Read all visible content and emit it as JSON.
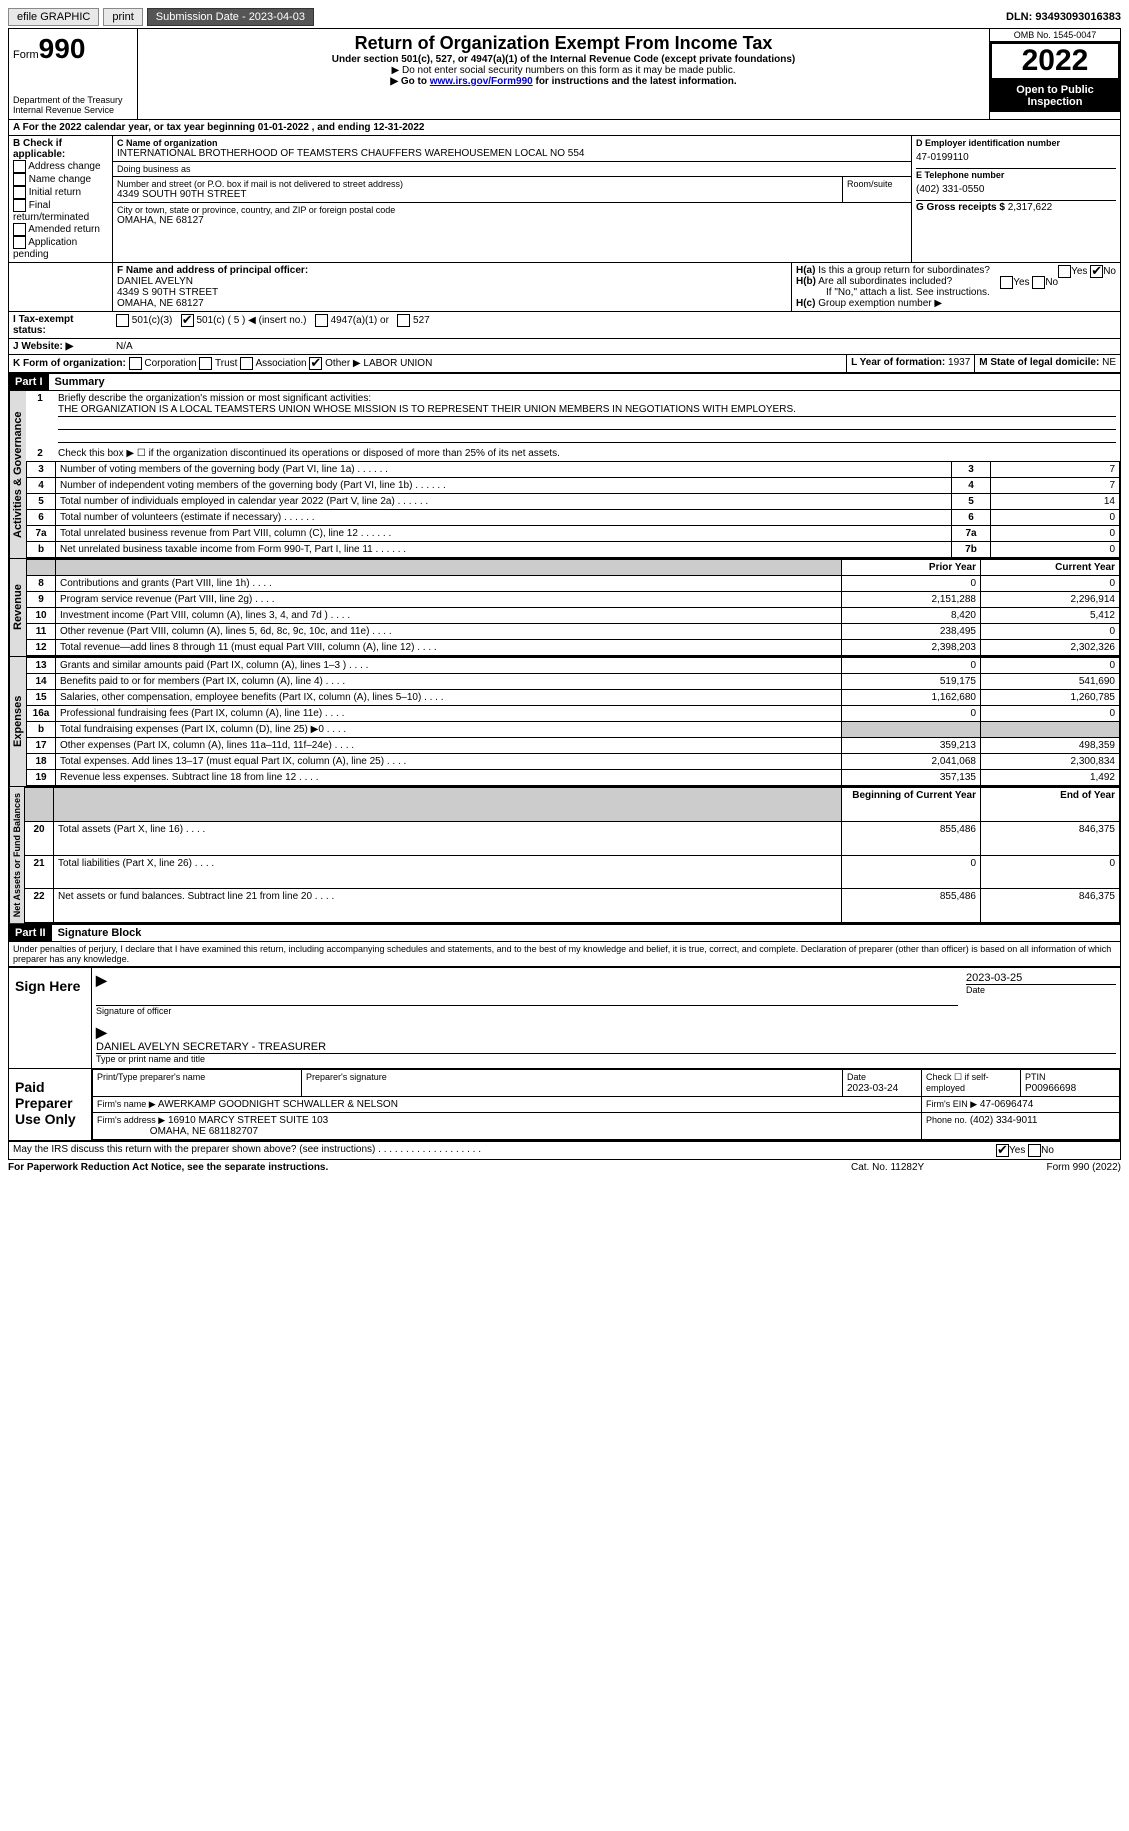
{
  "topbar": {
    "efile": "efile GRAPHIC",
    "print": "print",
    "sub_label": "Submission Date - 2023-04-03",
    "dln": "DLN: 93493093016383"
  },
  "header": {
    "form": "Form",
    "num": "990",
    "dept": "Department of the Treasury",
    "irs": "Internal Revenue Service",
    "title": "Return of Organization Exempt From Income Tax",
    "sub1": "Under section 501(c), 527, or 4947(a)(1) of the Internal Revenue Code (except private foundations)",
    "sub2": "▶ Do not enter social security numbers on this form as it may be made public.",
    "sub3_pre": "▶ Go to ",
    "sub3_link": "www.irs.gov/Form990",
    "sub3_post": " for instructions and the latest information.",
    "omb": "OMB No. 1545-0047",
    "year": "2022",
    "inspect": "Open to Public Inspection"
  },
  "a_line": "A For the 2022 calendar year, or tax year beginning 01-01-2022    , and ending 12-31-2022",
  "b": {
    "label": "B Check if applicable:",
    "opts": [
      "Address change",
      "Name change",
      "Initial return",
      "Final return/terminated",
      "Amended return",
      "Application pending"
    ]
  },
  "c": {
    "label": "C Name of organization",
    "name": "INTERNATIONAL BROTHERHOOD OF TEAMSTERS CHAUFFERS WAREHOUSEMEN LOCAL NO 554",
    "dba": "Doing business as",
    "addr_label": "Number and street (or P.O. box if mail is not delivered to street address)",
    "room": "Room/suite",
    "addr": "4349 SOUTH 90TH STREET",
    "city_label": "City or town, state or province, country, and ZIP or foreign postal code",
    "city": "OMAHA, NE  68127"
  },
  "d": {
    "label": "D Employer identification number",
    "val": "47-0199110"
  },
  "e": {
    "label": "E Telephone number",
    "val": "(402) 331-0550"
  },
  "g": {
    "label": "G Gross receipts $",
    "val": "2,317,622"
  },
  "f": {
    "label": "F Name and address of principal officer:",
    "name": "DANIEL AVELYN",
    "addr": "4349 S 90TH STREET",
    "city": "OMAHA, NE  68127"
  },
  "h": {
    "a": "Is this a group return for subordinates?",
    "b": "Are all subordinates included?",
    "note": "If \"No,\" attach a list. See instructions.",
    "c": "Group exemption number ▶"
  },
  "i": {
    "label": "Tax-exempt status:",
    "opts": [
      "501(c)(3)",
      "501(c) ( 5 ) ◀ (insert no.)",
      "4947(a)(1) or",
      "527"
    ]
  },
  "j": {
    "label": "Website: ▶",
    "val": "N/A"
  },
  "k": {
    "label": "K Form of organization:",
    "opts": [
      "Corporation",
      "Trust",
      "Association",
      "Other ▶"
    ],
    "other": "LABOR UNION"
  },
  "l": {
    "label": "L Year of formation:",
    "val": "1937"
  },
  "m": {
    "label": "M State of legal domicile:",
    "val": "NE"
  },
  "part1": {
    "hdr": "Part I",
    "title": "Summary",
    "q1": "Briefly describe the organization's mission or most significant activities:",
    "mission": "THE ORGANIZATION IS A LOCAL TEAMSTERS UNION WHOSE MISSION IS TO REPRESENT THEIR UNION MEMBERS IN NEGOTIATIONS WITH EMPLOYERS.",
    "q2": "Check this box ▶ ☐ if the organization discontinued its operations or disposed of more than 25% of its net assets.",
    "lines": [
      {
        "n": "3",
        "t": "Number of voting members of the governing body (Part VI, line 1a)",
        "box": "3",
        "v": "7"
      },
      {
        "n": "4",
        "t": "Number of independent voting members of the governing body (Part VI, line 1b)",
        "box": "4",
        "v": "7"
      },
      {
        "n": "5",
        "t": "Total number of individuals employed in calendar year 2022 (Part V, line 2a)",
        "box": "5",
        "v": "14"
      },
      {
        "n": "6",
        "t": "Total number of volunteers (estimate if necessary)",
        "box": "6",
        "v": "0"
      },
      {
        "n": "7a",
        "t": "Total unrelated business revenue from Part VIII, column (C), line 12",
        "box": "7a",
        "v": "0"
      },
      {
        "n": "b",
        "t": "Net unrelated business taxable income from Form 990-T, Part I, line 11",
        "box": "7b",
        "v": "0"
      }
    ],
    "col_prior": "Prior Year",
    "col_curr": "Current Year",
    "rev": [
      {
        "n": "8",
        "t": "Contributions and grants (Part VIII, line 1h)",
        "p": "0",
        "c": "0"
      },
      {
        "n": "9",
        "t": "Program service revenue (Part VIII, line 2g)",
        "p": "2,151,288",
        "c": "2,296,914"
      },
      {
        "n": "10",
        "t": "Investment income (Part VIII, column (A), lines 3, 4, and 7d )",
        "p": "8,420",
        "c": "5,412"
      },
      {
        "n": "11",
        "t": "Other revenue (Part VIII, column (A), lines 5, 6d, 8c, 9c, 10c, and 11e)",
        "p": "238,495",
        "c": "0"
      },
      {
        "n": "12",
        "t": "Total revenue—add lines 8 through 11 (must equal Part VIII, column (A), line 12)",
        "p": "2,398,203",
        "c": "2,302,326"
      }
    ],
    "exp": [
      {
        "n": "13",
        "t": "Grants and similar amounts paid (Part IX, column (A), lines 1–3 )",
        "p": "0",
        "c": "0"
      },
      {
        "n": "14",
        "t": "Benefits paid to or for members (Part IX, column (A), line 4)",
        "p": "519,175",
        "c": "541,690"
      },
      {
        "n": "15",
        "t": "Salaries, other compensation, employee benefits (Part IX, column (A), lines 5–10)",
        "p": "1,162,680",
        "c": "1,260,785"
      },
      {
        "n": "16a",
        "t": "Professional fundraising fees (Part IX, column (A), line 11e)",
        "p": "0",
        "c": "0"
      },
      {
        "n": "b",
        "t": "Total fundraising expenses (Part IX, column (D), line 25) ▶0",
        "p": "",
        "c": "",
        "grey": true
      },
      {
        "n": "17",
        "t": "Other expenses (Part IX, column (A), lines 11a–11d, 11f–24e)",
        "p": "359,213",
        "c": "498,359"
      },
      {
        "n": "18",
        "t": "Total expenses. Add lines 13–17 (must equal Part IX, column (A), line 25)",
        "p": "2,041,068",
        "c": "2,300,834"
      },
      {
        "n": "19",
        "t": "Revenue less expenses. Subtract line 18 from line 12",
        "p": "357,135",
        "c": "1,492"
      }
    ],
    "col_beg": "Beginning of Current Year",
    "col_end": "End of Year",
    "net": [
      {
        "n": "20",
        "t": "Total assets (Part X, line 16)",
        "p": "855,486",
        "c": "846,375"
      },
      {
        "n": "21",
        "t": "Total liabilities (Part X, line 26)",
        "p": "0",
        "c": "0"
      },
      {
        "n": "22",
        "t": "Net assets or fund balances. Subtract line 21 from line 20",
        "p": "855,486",
        "c": "846,375"
      }
    ],
    "tabs": {
      "gov": "Activities & Governance",
      "rev": "Revenue",
      "exp": "Expenses",
      "net": "Net Assets or Fund Balances"
    }
  },
  "part2": {
    "hdr": "Part II",
    "title": "Signature Block",
    "decl": "Under penalties of perjury, I declare that I have examined this return, including accompanying schedules and statements, and to the best of my knowledge and belief, it is true, correct, and complete. Declaration of preparer (other than officer) is based on all information of which preparer has any knowledge.",
    "sign": "Sign Here",
    "sig_label": "Signature of officer",
    "date": "2023-03-25",
    "date_label": "Date",
    "name": "DANIEL AVELYN  SECRETARY - TREASURER",
    "name_label": "Type or print name and title",
    "paid": "Paid Preparer Use Only",
    "p_name_label": "Print/Type preparer's name",
    "p_sig_label": "Preparer's signature",
    "p_date_label": "Date",
    "p_date": "2023-03-24",
    "p_check": "Check ☐ if self-employed",
    "ptin_label": "PTIN",
    "ptin": "P00966698",
    "firm_label": "Firm's name    ▶",
    "firm": "AWERKAMP GOODNIGHT SCHWALLER & NELSON",
    "ein_label": "Firm's EIN ▶",
    "ein": "47-0696474",
    "addr_label": "Firm's address ▶",
    "addr": "16910 MARCY STREET SUITE 103",
    "addr2": "OMAHA, NE  681182707",
    "phone_label": "Phone no.",
    "phone": "(402) 334-9011",
    "may": "May the IRS discuss this return with the preparer shown above? (see instructions)"
  },
  "footer": {
    "pra": "For Paperwork Reduction Act Notice, see the separate instructions.",
    "cat": "Cat. No. 11282Y",
    "form": "Form 990 (2022)"
  }
}
